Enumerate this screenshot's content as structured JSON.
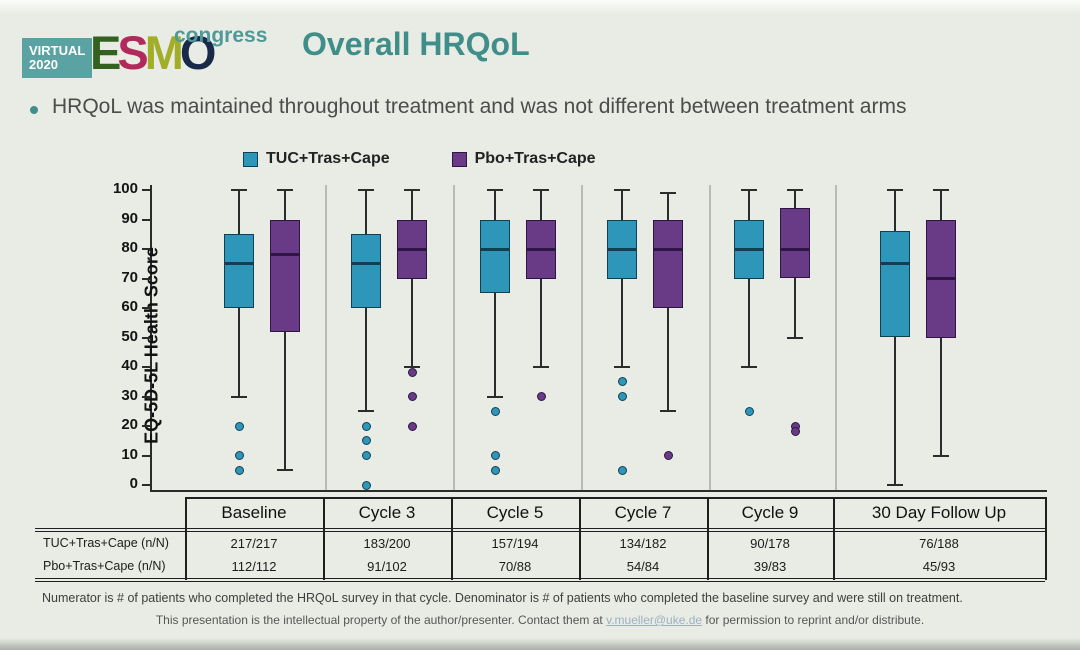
{
  "slide": {
    "logo": {
      "virtual_line1": "VIRTUAL",
      "virtual_line2": "2020",
      "esmo_letters": [
        {
          "ch": "E",
          "color": "#33611f"
        },
        {
          "ch": "S",
          "color": "#b22a5b"
        },
        {
          "ch": "M",
          "color": "#a2ad29"
        },
        {
          "ch": "O",
          "color": "#18294a"
        }
      ],
      "congress": "congress"
    },
    "title": "Overall HRQoL",
    "bullet": "HRQoL was maintained throughout treatment and was not different between treatment arms",
    "footnote": "Numerator is # of patients who completed the HRQoL survey in that cycle. Denominator is # of patients who completed the baseline survey and were still on treatment.",
    "disclaimer_pre": "This presentation is the intellectual property of the author/presenter. Contact them at ",
    "disclaimer_email": "v.mueller@uke.de",
    "disclaimer_post": " for permission to reprint and/or distribute."
  },
  "chart_data": {
    "type": "boxplot",
    "ylabel": "EQ-5D-5L Health Score",
    "ylim": [
      0,
      100
    ],
    "yticks": [
      0,
      10,
      20,
      30,
      40,
      50,
      60,
      70,
      80,
      90,
      100
    ],
    "grid": false,
    "legend_position": "top",
    "categories": [
      "Baseline",
      "Cycle 3",
      "Cycle 5",
      "Cycle 7",
      "Cycle 9",
      "30 Day Follow Up"
    ],
    "series": [
      {
        "name": "TUC+Tras+Cape",
        "color": "#2e96b8",
        "dark": "#123f52",
        "boxes": [
          {
            "low": 30,
            "q1": 60,
            "median": 75,
            "q3": 85,
            "high": 100,
            "outliers": [
              20,
              10,
              5
            ]
          },
          {
            "low": 25,
            "q1": 60,
            "median": 75,
            "q3": 85,
            "high": 100,
            "outliers": [
              20,
              15,
              10,
              0
            ]
          },
          {
            "low": 30,
            "q1": 65,
            "median": 80,
            "q3": 90,
            "high": 100,
            "outliers": [
              25,
              10,
              5
            ]
          },
          {
            "low": 40,
            "q1": 70,
            "median": 80,
            "q3": 90,
            "high": 100,
            "outliers": [
              35,
              30,
              5
            ]
          },
          {
            "low": 40,
            "q1": 70,
            "median": 80,
            "q3": 90,
            "high": 100,
            "outliers": [
              25
            ]
          },
          {
            "low": 0,
            "q1": 50,
            "median": 75,
            "q3": 86,
            "high": 100,
            "outliers": []
          }
        ]
      },
      {
        "name": "Pbo+Tras+Cape",
        "color": "#693a85",
        "dark": "#2e1544",
        "boxes": [
          {
            "low": 5,
            "q1": 52,
            "median": 78,
            "q3": 90,
            "high": 100,
            "outliers": []
          },
          {
            "low": 40,
            "q1": 70,
            "median": 80,
            "q3": 90,
            "high": 100,
            "outliers": [
              38,
              30,
              20
            ]
          },
          {
            "low": 40,
            "q1": 70,
            "median": 80,
            "q3": 90,
            "high": 100,
            "outliers": [
              30
            ]
          },
          {
            "low": 25,
            "q1": 60,
            "median": 80,
            "q3": 90,
            "high": 99,
            "outliers": [
              10
            ]
          },
          {
            "low": 50,
            "q1": 70,
            "median": 80,
            "q3": 94,
            "high": 100,
            "outliers": [
              20,
              18
            ]
          },
          {
            "low": 10,
            "q1": 50,
            "median": 70,
            "q3": 90,
            "high": 100,
            "outliers": []
          }
        ]
      }
    ],
    "table": {
      "rows": [
        {
          "label": "TUC+Tras+Cape (n/N)",
          "values": [
            "217/217",
            "183/200",
            "157/194",
            "134/182",
            "90/178",
            "76/188"
          ]
        },
        {
          "label": "Pbo+Tras+Cape (n/N)",
          "values": [
            "112/112",
            "91/102",
            "70/88",
            "54/84",
            "39/83",
            "45/93"
          ]
        }
      ]
    }
  }
}
